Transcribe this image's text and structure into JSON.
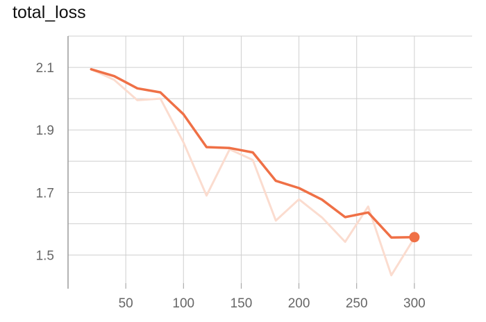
{
  "chart_data": {
    "type": "line",
    "title": "total_loss",
    "xlabel": "",
    "ylabel": "",
    "xlim": [
      0,
      350
    ],
    "ylim": [
      1.41,
      2.2
    ],
    "x_ticks": [
      50,
      100,
      150,
      200,
      250,
      300
    ],
    "y_ticks": [
      1.5,
      1.7,
      1.9,
      2.1
    ],
    "x_tick_labels": [
      "50",
      "100",
      "150",
      "200",
      "250",
      "300"
    ],
    "y_tick_labels": [
      "1.5",
      "1.7",
      "1.9",
      "2.1"
    ],
    "grid": true,
    "series": [
      {
        "role": "raw",
        "color": "#fbdccf",
        "x": [
          20,
          40,
          60,
          80,
          100,
          120,
          140,
          160,
          180,
          200,
          220,
          240,
          260,
          280,
          300
        ],
        "values": [
          2.094,
          2.06,
          1.995,
          2.0,
          1.86,
          1.69,
          1.838,
          1.804,
          1.61,
          1.678,
          1.62,
          1.542,
          1.655,
          1.435,
          1.555
        ]
      },
      {
        "role": "smoothed",
        "color": "#ef7046",
        "x": [
          20,
          40,
          60,
          80,
          100,
          120,
          140,
          160,
          180,
          200,
          220,
          240,
          260,
          280,
          300
        ],
        "values": [
          2.094,
          2.072,
          2.033,
          2.02,
          1.95,
          1.845,
          1.842,
          1.828,
          1.737,
          1.714,
          1.677,
          1.621,
          1.636,
          1.556,
          1.557
        ]
      }
    ]
  }
}
